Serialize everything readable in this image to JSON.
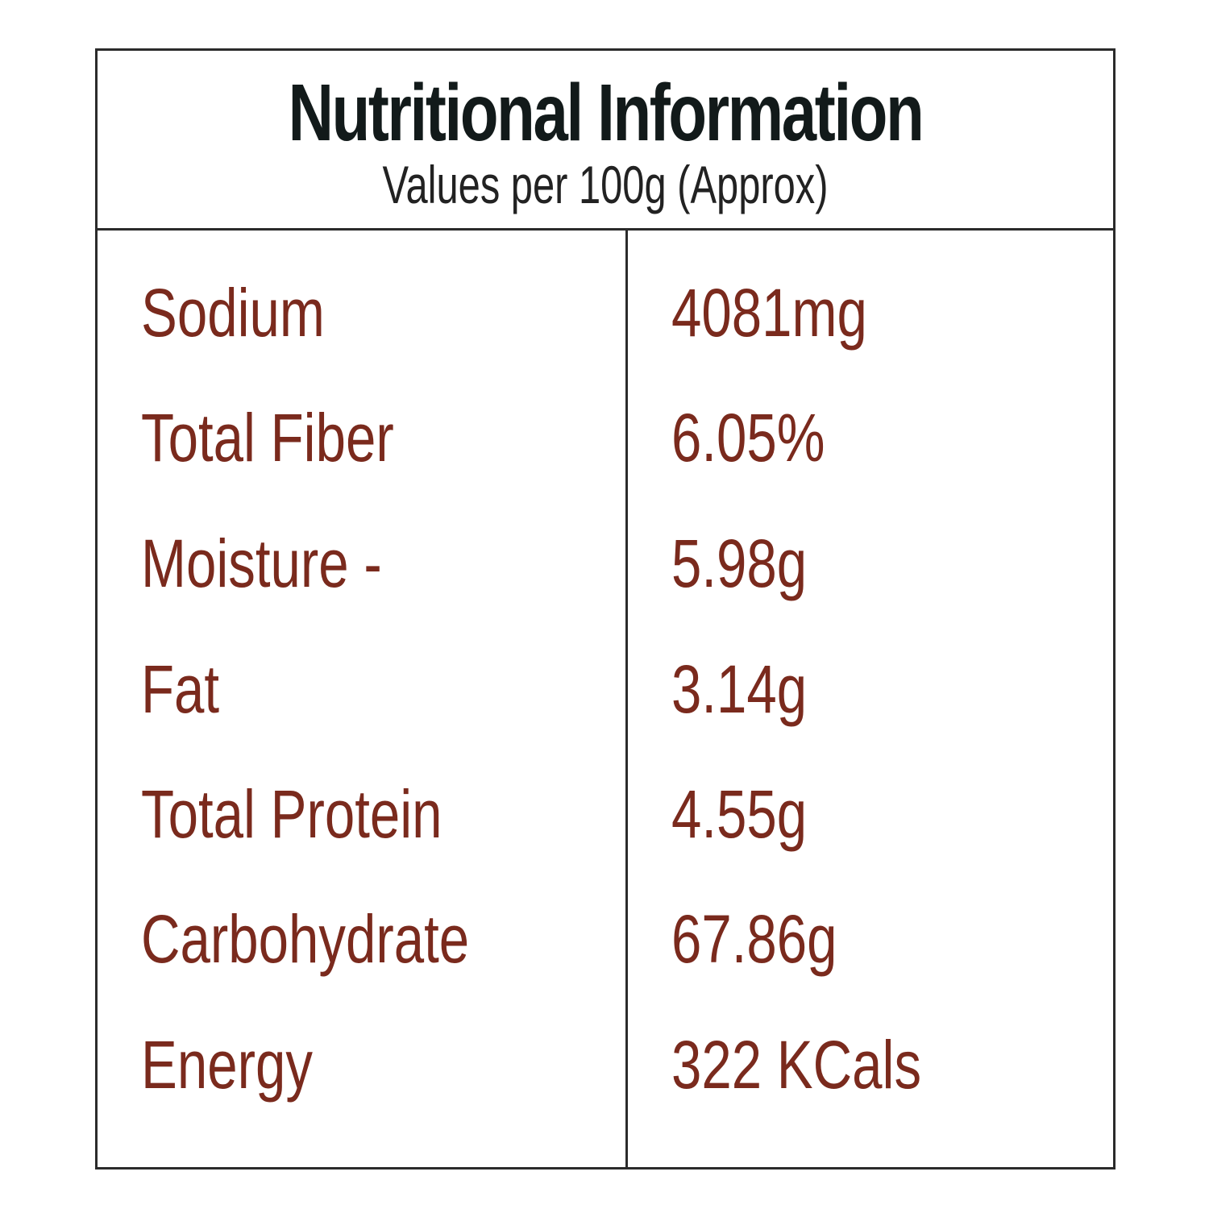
{
  "header": {
    "title": "Nutritional Information",
    "subtitle": "Values per 100g (Approx)"
  },
  "rows": [
    {
      "label": "Sodium",
      "value": "4081mg"
    },
    {
      "label": "Total Fiber",
      "value": "6.05%"
    },
    {
      "label": "Moisture -",
      "value": "5.98g"
    },
    {
      "label": "Fat",
      "value": "3.14g"
    },
    {
      "label": "Total Protein",
      "value": "4.55g"
    },
    {
      "label": "Carbohydrate",
      "value": "67.86g"
    },
    {
      "label": "Energy",
      "value": "322 KCals"
    }
  ],
  "colors": {
    "border": "#2b2b2b",
    "title": "#121a1a",
    "text_accent": "#7a2a1d",
    "background": "#ffffff"
  }
}
